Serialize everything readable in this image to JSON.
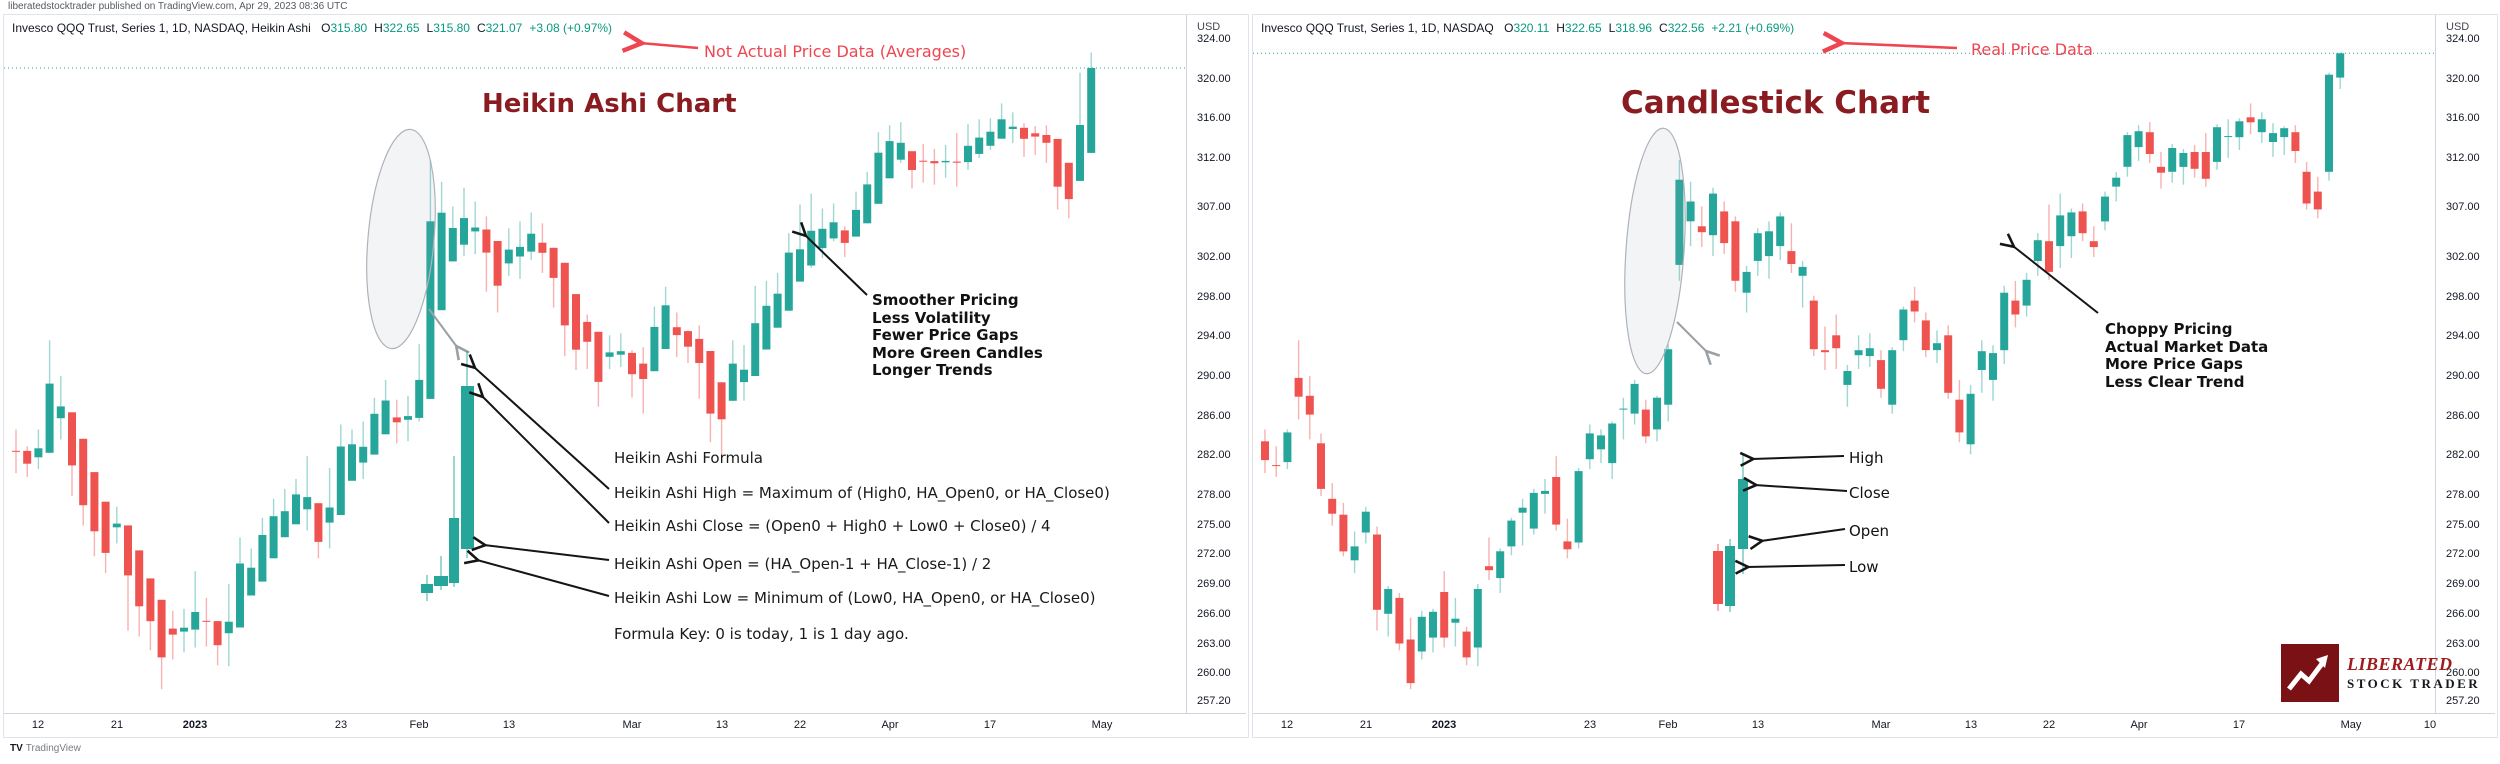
{
  "header": {
    "attribution": "liberatedstocktrader published on TradingView.com, Apr 29, 2023 08:36 UTC"
  },
  "footer": {
    "glyph": "TV",
    "brand": "TradingView"
  },
  "logo": {
    "line1": "LIBERATED",
    "line2": "STOCK TRADER"
  },
  "colors": {
    "up": "#26a69a",
    "down": "#ef5350",
    "accent_red": "#ef4551",
    "title_maroon": "#8a1c21",
    "legend_value_green": "#089981"
  },
  "price_axis": {
    "currency": "USD",
    "labels": [
      "324.00",
      "320.00",
      "316.00",
      "312.00",
      "307.00",
      "302.00",
      "298.00",
      "294.00",
      "290.00",
      "286.00",
      "282.00",
      "278.00",
      "275.00",
      "272.00",
      "269.00",
      "266.00",
      "263.00",
      "260.00",
      "257.20"
    ]
  },
  "panels": [
    {
      "name": "heikin-ashi",
      "title": "Heikin Ashi Chart",
      "red_note": "Not Actual Price Data (Averages)",
      "legend": {
        "symbol": "Invesco QQQ Trust, Series 1, 1D, NASDAQ, Heikin Ashi",
        "ohlc": [
          [
            "O",
            "315.80"
          ],
          [
            "H",
            "322.65"
          ],
          [
            "L",
            "315.80"
          ],
          [
            "C",
            "321.07"
          ]
        ],
        "change": "+3.08 (+0.97%)"
      },
      "last_price": 321.07,
      "bullets": [
        "Smoother Pricing",
        "Less Volatility",
        "Fewer Price Gaps",
        "More Green Candles",
        "Longer Trends"
      ],
      "formula_lines": [
        "Heikin Ashi Formula",
        "Heikin Ashi High = Maximum of (High0, HA_Open0, or HA_Close0)",
        "Heikin Ashi Close = (Open0 + High0 + Low0 + Close0) / 4",
        "Heikin Ashi Open = (HA_Open-1 + HA_Close-1) / 2",
        "Heikin Ashi Low = Minimum of (Low0, HA_Open0, or HA_Close0)",
        "Formula Key: 0 is today, 1 is 1 day ago."
      ],
      "x_ticks": [
        {
          "t": "12",
          "i": 2
        },
        {
          "t": "21",
          "i": 9
        },
        {
          "t": "2023",
          "i": 16,
          "b": true
        },
        {
          "t": "23",
          "i": 29
        },
        {
          "t": "Feb",
          "i": 36
        },
        {
          "t": "13",
          "i": 44
        },
        {
          "t": "Mar",
          "i": 55
        },
        {
          "t": "13",
          "i": 63
        },
        {
          "t": "22",
          "i": 70
        },
        {
          "t": "Apr",
          "i": 78
        },
        {
          "t": "17",
          "i": 87
        },
        {
          "t": "May",
          "i": 97
        }
      ]
    },
    {
      "name": "candlestick",
      "title": "Candlestick Chart",
      "red_note": "Real Price Data",
      "legend": {
        "symbol": "Invesco QQQ Trust, Series 1, 1D, NASDAQ",
        "ohlc": [
          [
            "O",
            "320.11"
          ],
          [
            "H",
            "322.65"
          ],
          [
            "L",
            "318.96"
          ],
          [
            "C",
            "322.56"
          ]
        ],
        "change": "+2.21 (+0.69%)"
      },
      "last_price": 322.56,
      "bullets": [
        "Choppy Pricing",
        "Actual Market Data",
        "More Price Gaps",
        "Less Clear Trend"
      ],
      "ohlc_pointer_labels": [
        "High",
        "Close",
        "Open",
        "Low"
      ],
      "x_ticks": [
        {
          "t": "12",
          "i": 2
        },
        {
          "t": "21",
          "i": 9
        },
        {
          "t": "2023",
          "i": 16,
          "b": true
        },
        {
          "t": "23",
          "i": 29
        },
        {
          "t": "Feb",
          "i": 36
        },
        {
          "t": "13",
          "i": 44
        },
        {
          "t": "Mar",
          "i": 55
        },
        {
          "t": "13",
          "i": 63
        },
        {
          "t": "22",
          "i": 70
        },
        {
          "t": "Apr",
          "i": 78
        },
        {
          "t": "17",
          "i": 87
        },
        {
          "t": "May",
          "i": 97
        },
        {
          "t": "10",
          "i": 104
        }
      ]
    }
  ],
  "chart_data": [
    {
      "type": "heikin_ashi_candlestick",
      "title": "Heikin Ashi Chart",
      "symbol": "Invesco QQQ Trust, Series 1, 1D, NASDAQ, Heikin Ashi",
      "ylim": [
        257.2,
        324.0
      ],
      "x_tick_labels": [
        "12",
        "21",
        "2023",
        "23",
        "Feb",
        "13",
        "Mar",
        "13",
        "22",
        "Apr",
        "17",
        "May"
      ],
      "last_ohlc": {
        "open": 315.8,
        "high": 322.65,
        "low": 315.8,
        "close": 321.07,
        "change": "+3.08 (+0.97%)"
      },
      "derived_from": "chart_data[1].ohlc using the Heikin Ashi formula shown in the annotations"
    },
    {
      "type": "candlestick",
      "title": "Candlestick Chart",
      "symbol": "Invesco QQQ Trust, Series 1, 1D, NASDAQ",
      "ylim": [
        257.2,
        324.0
      ],
      "x_tick_labels": [
        "12",
        "21",
        "2023",
        "23",
        "Feb",
        "13",
        "Mar",
        "13",
        "22",
        "Apr",
        "17",
        "May",
        "10"
      ],
      "last_ohlc": {
        "open": 320.11,
        "high": 322.65,
        "low": 318.96,
        "close": 322.56,
        "change": "+2.21 (+0.69%)"
      },
      "ohlc_note": "approx daily OHLC, Dec 8 2022 - Apr 28 2023, read from chart",
      "ohlc": [
        [
          283.4,
          284.6,
          280.2,
          281.5
        ],
        [
          281.0,
          282.9,
          279.8,
          280.9
        ],
        [
          281.3,
          284.6,
          280.6,
          284.3
        ],
        [
          289.8,
          293.6,
          285.6,
          287.9
        ],
        [
          288.0,
          290.0,
          283.6,
          286.1
        ],
        [
          283.2,
          284.2,
          277.9,
          278.6
        ],
        [
          277.6,
          279.2,
          274.9,
          276.1
        ],
        [
          276.0,
          277.2,
          271.8,
          272.3
        ],
        [
          271.4,
          274.3,
          270.1,
          272.8
        ],
        [
          274.2,
          276.8,
          273.1,
          276.3
        ],
        [
          274.0,
          274.8,
          264.3,
          266.4
        ],
        [
          266.0,
          268.8,
          263.7,
          268.5
        ],
        [
          267.6,
          268.1,
          262.3,
          263.0
        ],
        [
          263.4,
          265.6,
          258.4,
          259.0
        ],
        [
          262.2,
          266.3,
          261.4,
          265.7
        ],
        [
          263.6,
          266.5,
          262.1,
          266.2
        ],
        [
          268.2,
          270.3,
          262.6,
          263.6
        ],
        [
          265.1,
          267.6,
          262.7,
          265.5
        ],
        [
          264.2,
          264.7,
          260.8,
          261.6
        ],
        [
          262.6,
          269.0,
          260.7,
          268.5
        ],
        [
          270.8,
          273.7,
          269.4,
          270.4
        ],
        [
          269.6,
          272.6,
          268.1,
          272.3
        ],
        [
          272.8,
          275.7,
          271.9,
          275.4
        ],
        [
          276.2,
          277.6,
          272.9,
          276.7
        ],
        [
          274.6,
          278.6,
          274.0,
          278.2
        ],
        [
          278.1,
          279.6,
          276.1,
          278.4
        ],
        [
          279.8,
          281.9,
          274.4,
          275.0
        ],
        [
          273.3,
          275.6,
          271.6,
          272.5
        ],
        [
          273.2,
          280.7,
          272.6,
          280.4
        ],
        [
          281.6,
          285.1,
          280.6,
          284.2
        ],
        [
          282.6,
          284.6,
          281.2,
          284.0
        ],
        [
          281.2,
          285.4,
          279.6,
          285.2
        ],
        [
          286.6,
          287.8,
          283.6,
          286.7
        ],
        [
          286.2,
          289.6,
          285.1,
          289.2
        ],
        [
          286.6,
          287.6,
          283.2,
          283.9
        ],
        [
          284.6,
          288.0,
          283.4,
          287.8
        ],
        [
          287.1,
          293.2,
          285.4,
          292.7
        ],
        [
          301.2,
          311.8,
          299.6,
          309.8
        ],
        [
          305.6,
          309.6,
          303.1,
          307.6
        ],
        [
          305.1,
          307.1,
          303.0,
          304.5
        ],
        [
          304.2,
          309.0,
          302.1,
          308.4
        ],
        [
          306.6,
          307.6,
          302.3,
          303.4
        ],
        [
          305.6,
          306.1,
          298.5,
          299.6
        ],
        [
          298.4,
          301.1,
          296.4,
          300.5
        ],
        [
          301.6,
          304.9,
          300.1,
          304.4
        ],
        [
          302.1,
          305.6,
          299.8,
          304.6
        ],
        [
          303.1,
          306.5,
          301.7,
          306.1
        ],
        [
          302.6,
          305.4,
          300.4,
          301.3
        ],
        [
          300.1,
          301.6,
          296.9,
          301.0
        ],
        [
          297.6,
          298.1,
          292.0,
          292.7
        ],
        [
          292.6,
          295.0,
          290.6,
          292.4
        ],
        [
          294.1,
          296.2,
          290.7,
          292.8
        ],
        [
          289.1,
          291.1,
          286.9,
          290.5
        ],
        [
          292.1,
          294.1,
          290.7,
          292.6
        ],
        [
          292.0,
          294.3,
          290.9,
          292.8
        ],
        [
          291.6,
          292.6,
          287.8,
          288.7
        ],
        [
          287.1,
          292.9,
          286.2,
          292.6
        ],
        [
          293.6,
          297.0,
          292.5,
          296.7
        ],
        [
          297.6,
          299.0,
          295.4,
          296.5
        ],
        [
          295.6,
          296.4,
          291.9,
          292.6
        ],
        [
          292.6,
          294.6,
          291.3,
          293.3
        ],
        [
          294.1,
          295.1,
          287.7,
          288.3
        ],
        [
          287.6,
          289.6,
          283.3,
          284.3
        ],
        [
          283.1,
          289.1,
          282.1,
          288.2
        ],
        [
          290.6,
          293.6,
          288.3,
          292.5
        ],
        [
          289.6,
          293.1,
          287.5,
          292.3
        ],
        [
          292.6,
          299.1,
          291.2,
          298.4
        ],
        [
          297.6,
          299.6,
          294.9,
          296.2
        ],
        [
          297.1,
          300.4,
          296.0,
          299.7
        ],
        [
          301.6,
          304.4,
          300.1,
          303.7
        ],
        [
          303.6,
          307.3,
          299.7,
          300.5
        ],
        [
          303.1,
          308.4,
          300.9,
          306.2
        ],
        [
          304.1,
          306.9,
          301.9,
          306.5
        ],
        [
          306.6,
          307.4,
          303.6,
          304.4
        ],
        [
          303.6,
          305.1,
          302.0,
          303.0
        ],
        [
          305.6,
          308.6,
          304.7,
          308.1
        ],
        [
          309.1,
          310.6,
          307.6,
          310.0
        ],
        [
          311.1,
          314.6,
          310.1,
          314.3
        ],
        [
          313.1,
          315.3,
          311.7,
          314.7
        ],
        [
          314.6,
          315.6,
          311.5,
          312.4
        ],
        [
          311.1,
          312.6,
          308.9,
          310.5
        ],
        [
          310.6,
          313.4,
          309.5,
          313.0
        ],
        [
          311.1,
          312.9,
          309.3,
          312.5
        ],
        [
          312.6,
          313.3,
          310.0,
          310.9
        ],
        [
          312.6,
          314.5,
          309.1,
          309.9
        ],
        [
          311.6,
          315.4,
          310.8,
          315.1
        ],
        [
          314.1,
          315.9,
          312.0,
          314.2
        ],
        [
          314.1,
          316.0,
          312.8,
          315.7
        ],
        [
          316.1,
          317.5,
          314.4,
          315.6
        ],
        [
          314.6,
          316.6,
          313.5,
          315.9
        ],
        [
          313.6,
          315.5,
          312.1,
          314.5
        ],
        [
          314.1,
          315.2,
          312.3,
          315.0
        ],
        [
          314.6,
          315.3,
          311.5,
          312.7
        ],
        [
          310.6,
          311.6,
          306.8,
          307.4
        ],
        [
          308.6,
          310.1,
          305.9,
          306.8
        ],
        [
          310.6,
          320.6,
          309.7,
          320.4
        ],
        [
          320.11,
          322.65,
          318.96,
          322.56
        ]
      ]
    }
  ]
}
